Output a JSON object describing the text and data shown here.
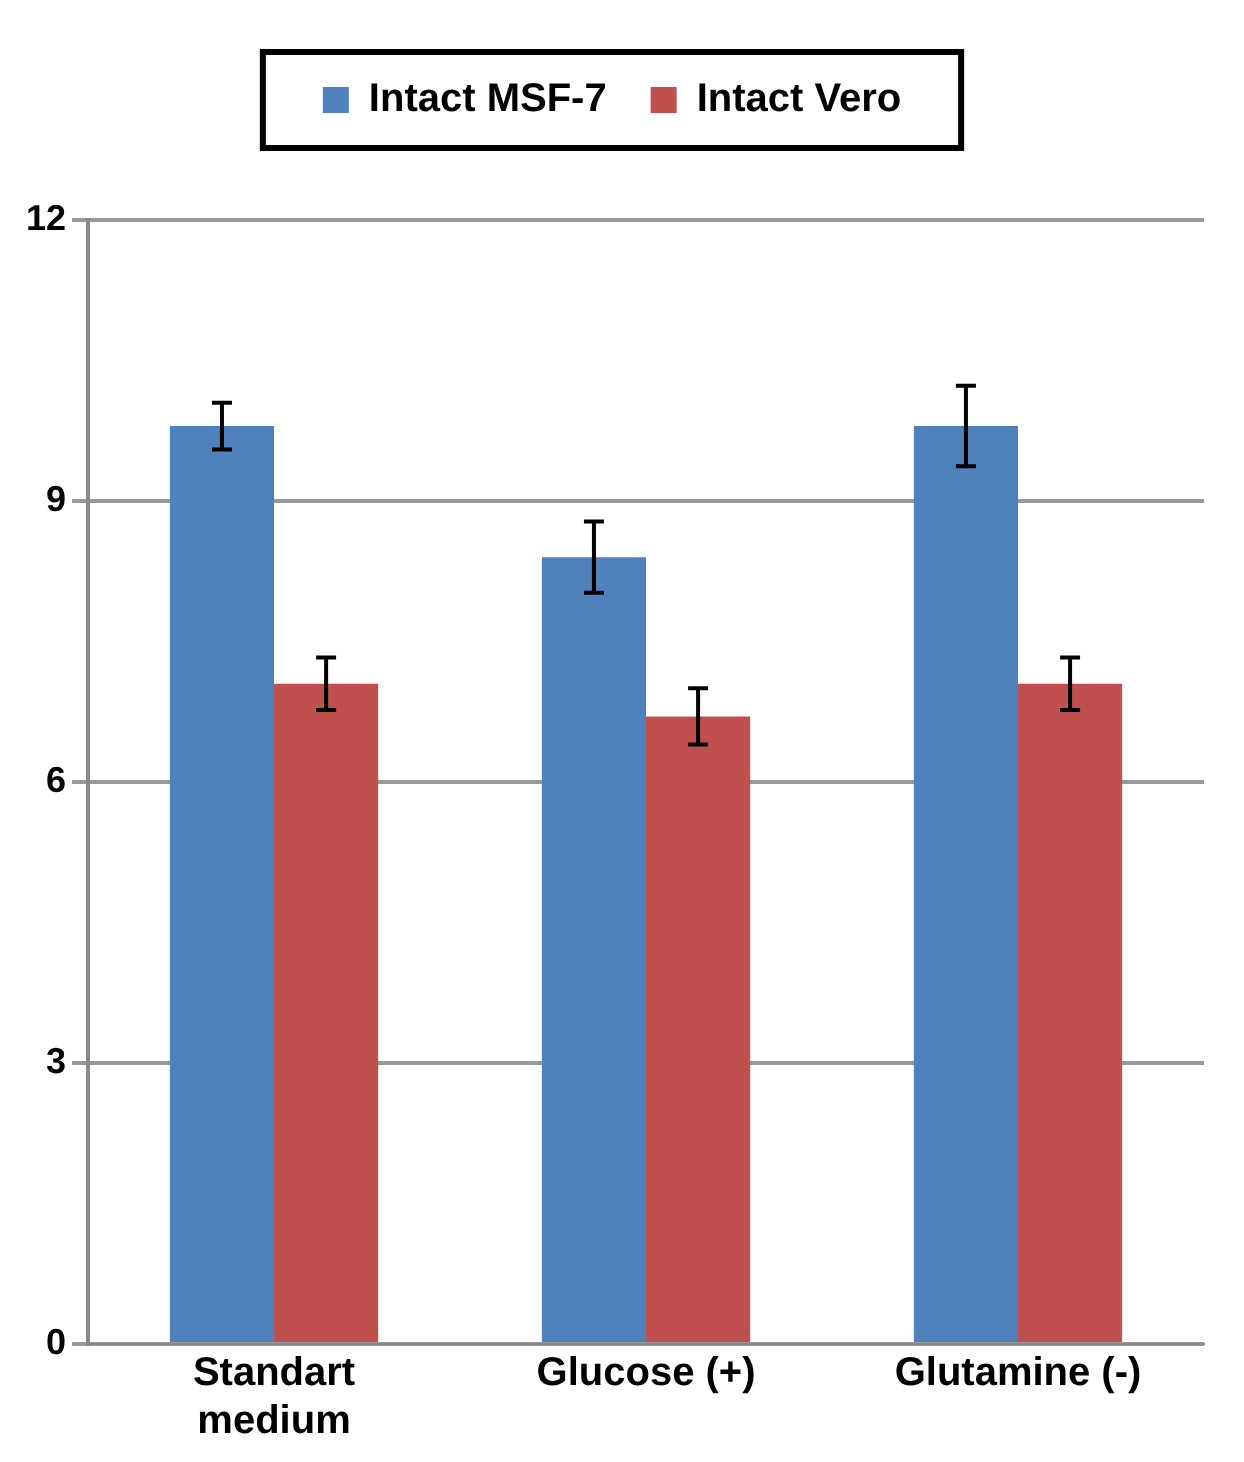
{
  "chart_data": {
    "type": "bar",
    "categories": [
      "Standart\nmedium",
      "Glucose (+)",
      "Glutamine (-)"
    ],
    "series": [
      {
        "name": "Intact MSF-7",
        "color": "#4f81bd",
        "values": [
          9.8,
          8.4,
          9.8
        ],
        "errors": [
          0.25,
          0.38,
          0.43
        ]
      },
      {
        "name": "Intact Vero",
        "color": "#c0504d",
        "values": [
          7.05,
          6.7,
          7.05
        ],
        "errors": [
          0.28,
          0.3,
          0.28
        ]
      }
    ],
    "ylim": [
      0,
      12
    ],
    "yticks": [
      0,
      3,
      6,
      9,
      12
    ],
    "grid": "y",
    "legend": "top"
  }
}
